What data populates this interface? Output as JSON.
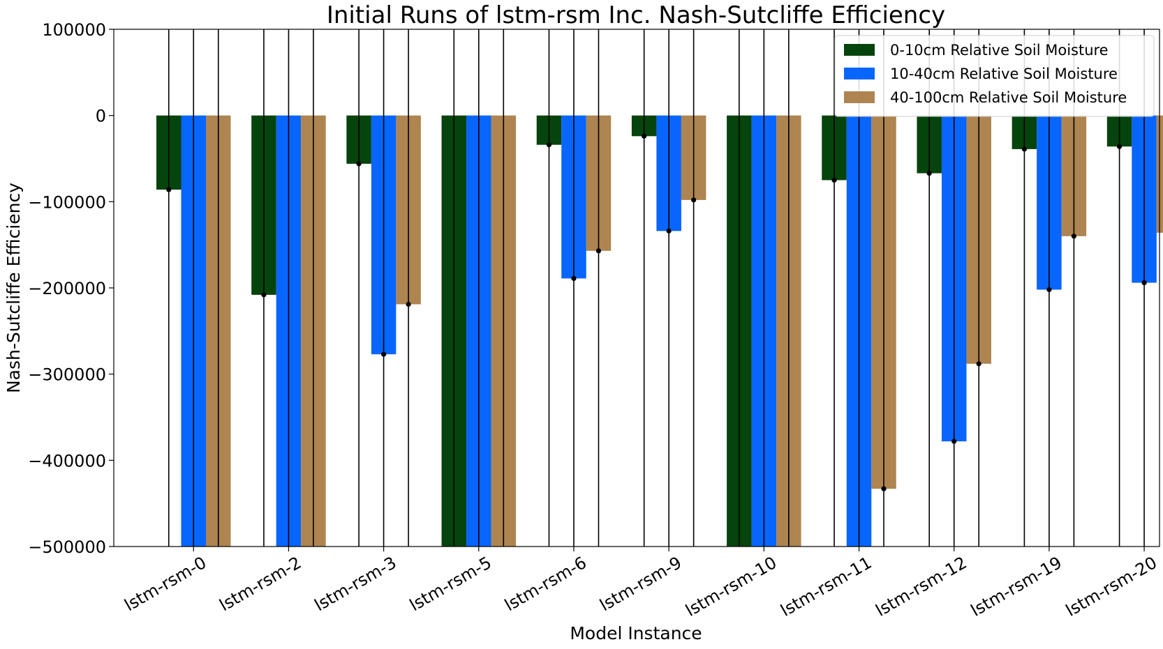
{
  "chart_data": {
    "type": "bar",
    "title": "Initial Runs of lstm-rsm Inc. Nash-Sutcliffe Efficiency",
    "xlabel": "Model Instance",
    "ylabel": "Nash-Sutcliffe Efficiency",
    "ylim": [
      -500000,
      100000
    ],
    "yticks": [
      100000,
      0,
      -100000,
      -200000,
      -300000,
      -400000,
      -500000
    ],
    "ytick_labels": [
      "100000",
      "0",
      "−100000",
      "−200000",
      "−300000",
      "−400000",
      "−500000"
    ],
    "categories": [
      "lstm-rsm-0",
      "lstm-rsm-2",
      "lstm-rsm-3",
      "lstm-rsm-5",
      "lstm-rsm-6",
      "lstm-rsm-9",
      "lstm-rsm-10",
      "lstm-rsm-11",
      "lstm-rsm-12",
      "lstm-rsm-19",
      "lstm-rsm-20"
    ],
    "series": [
      {
        "name": "0-10cm Relative Soil Moisture",
        "color": "#05440c",
        "values": [
          -86000,
          -208000,
          -56000,
          -500000,
          -34000,
          -24000,
          -500000,
          -75000,
          -67000,
          -39000,
          -36000
        ]
      },
      {
        "name": "10-40cm Relative Soil Moisture",
        "color": "#0865fd",
        "values": [
          -500000,
          -500000,
          -277000,
          -500000,
          -189000,
          -134000,
          -500000,
          -500000,
          -378000,
          -202000,
          -194000
        ]
      },
      {
        "name": "40-100cm Relative Soil Moisture",
        "color": "#ae8450",
        "values": [
          -500000,
          -500000,
          -219000,
          -500000,
          -157000,
          -98000,
          -500000,
          -433000,
          -288000,
          -140000,
          -136000
        ]
      }
    ],
    "error_bars": true,
    "grid": false,
    "legend_position": "top-right"
  }
}
